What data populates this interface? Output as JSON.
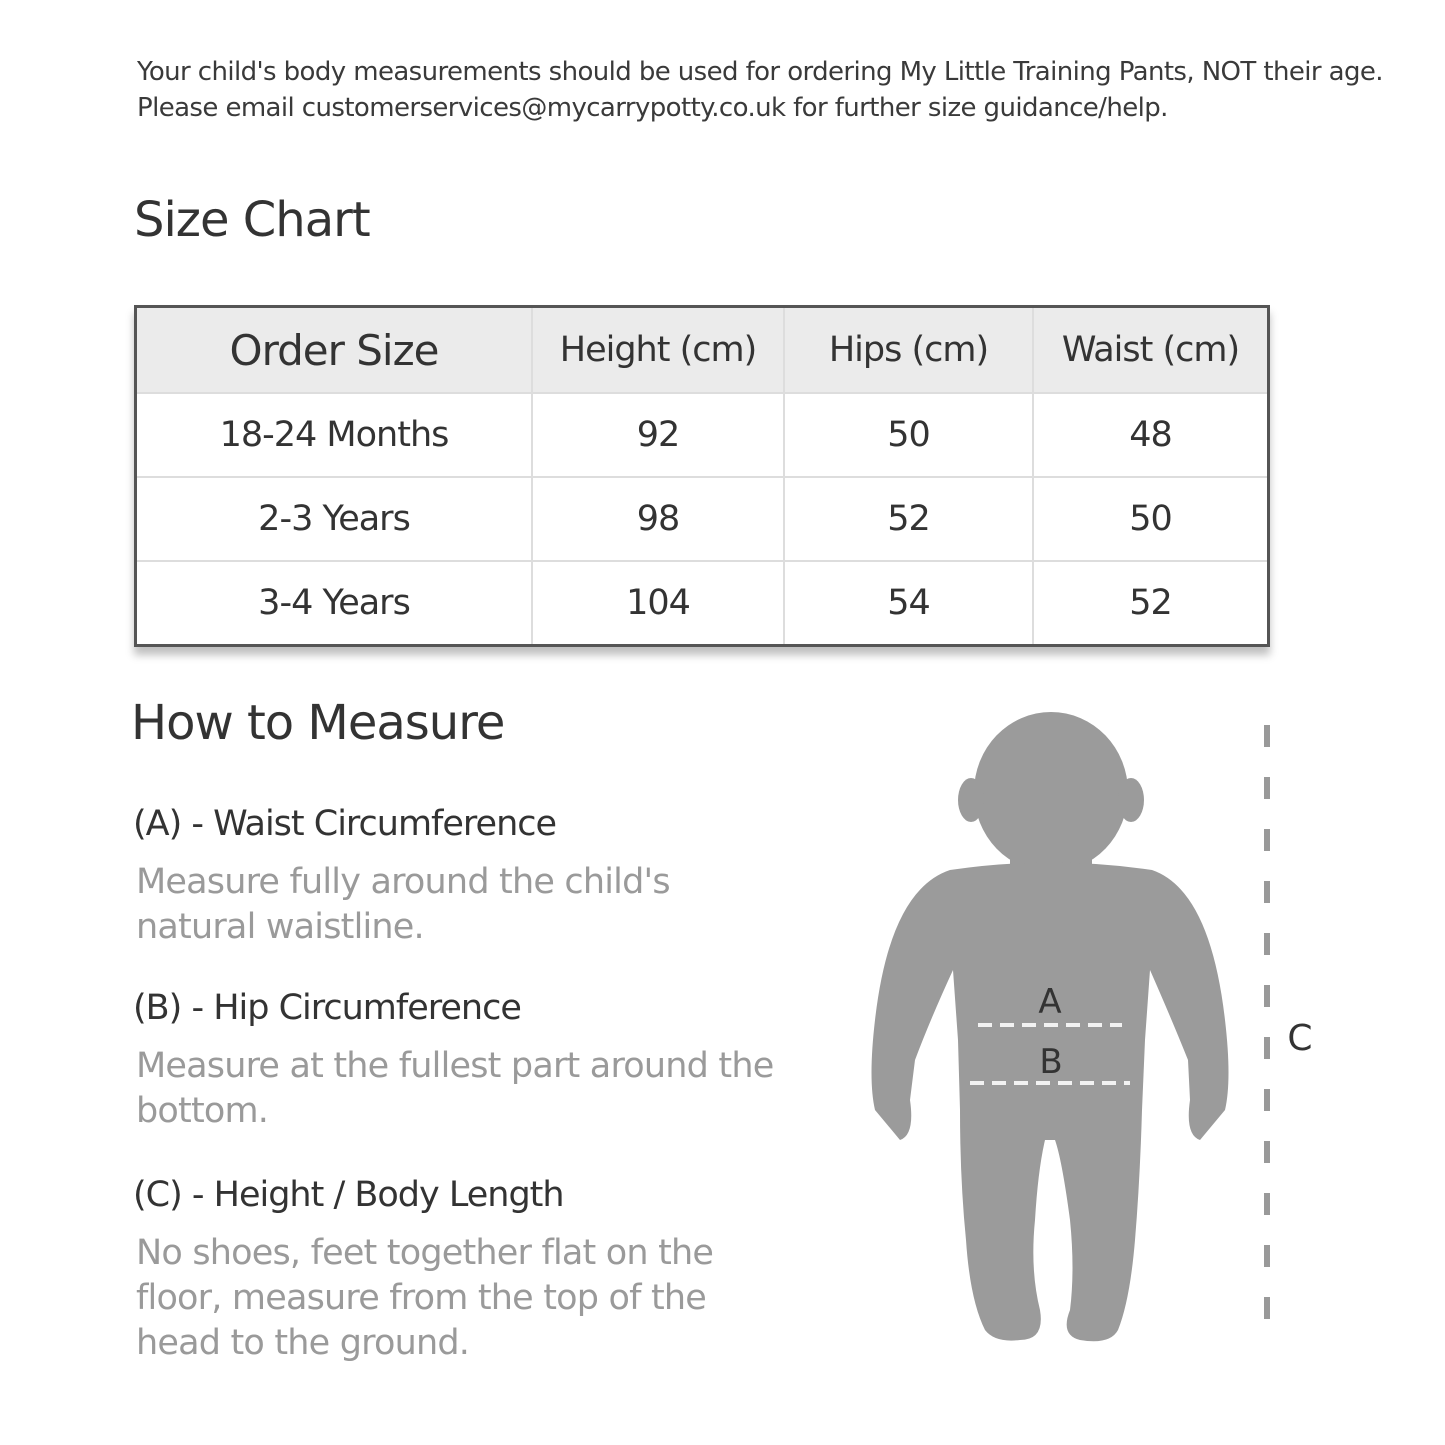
{
  "intro": "Your child's body measurements should be used for ordering My Little Training Pants, NOT their age. Please email customerservices@mycarrypotty.co.uk for further size guidance/help.",
  "size_chart": {
    "title": "Size Chart",
    "headers": [
      "Order Size",
      "Height (cm)",
      "Hips (cm)",
      "Waist (cm)"
    ],
    "rows": [
      [
        "18-24 Months",
        "92",
        "50",
        "48"
      ],
      [
        "2-3 Years",
        "98",
        "52",
        "50"
      ],
      [
        "3-4 Years",
        "104",
        "54",
        "52"
      ]
    ]
  },
  "how_to_measure": {
    "title": "How to Measure",
    "items": [
      {
        "heading": "(A) - Waist Circumference",
        "description": "Measure fully around the child's natural waistline."
      },
      {
        "heading": "(B) - Hip Circumference",
        "description": "Measure at the fullest part around the bottom."
      },
      {
        "heading": "(C) - Height / Body Length",
        "description": "No shoes, feet together flat on the floor, measure from the top of the head to the ground."
      }
    ]
  },
  "figure": {
    "labels": {
      "a": "A",
      "b": "B",
      "c": "C"
    },
    "silhouette_color": "#9b9b9b"
  }
}
